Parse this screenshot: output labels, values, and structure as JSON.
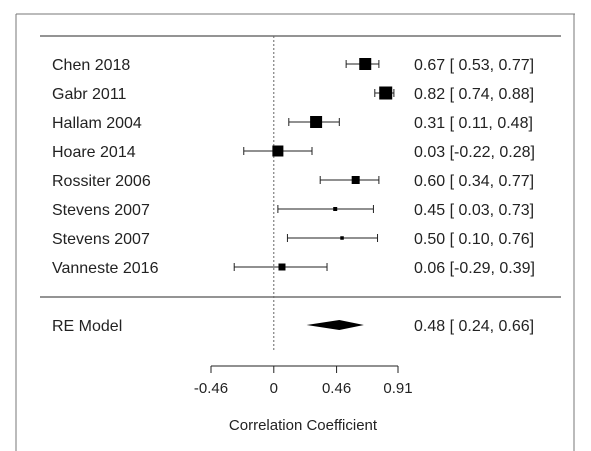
{
  "chart_data": {
    "type": "forest",
    "xlabel": "Correlation Coefficient",
    "xlim": [
      -0.46,
      0.91
    ],
    "xticks": [
      -0.46,
      0,
      0.46,
      0.91
    ],
    "xtick_labels": [
      "-0.46",
      "0",
      "0.46",
      "0.91"
    ],
    "reference_line": 0,
    "studies": [
      {
        "label": "Chen 2018",
        "estimate": 0.67,
        "ci": [
          0.53,
          0.77
        ],
        "ci_text": "0.67 [ 0.53, 0.77]",
        "weight": 12
      },
      {
        "label": "Gabr 2011",
        "estimate": 0.82,
        "ci": [
          0.74,
          0.88
        ],
        "ci_text": "0.82 [ 0.74, 0.88]",
        "weight": 13
      },
      {
        "label": "Hallam 2004",
        "estimate": 0.31,
        "ci": [
          0.11,
          0.48
        ],
        "ci_text": "0.31 [ 0.11, 0.48]",
        "weight": 12
      },
      {
        "label": "Hoare 2014",
        "estimate": 0.03,
        "ci": [
          -0.22,
          0.28
        ],
        "ci_text": "0.03 [-0.22, 0.28]",
        "weight": 11
      },
      {
        "label": "Rossiter 2006",
        "estimate": 0.6,
        "ci": [
          0.34,
          0.77
        ],
        "ci_text": "0.60 [ 0.34, 0.77]",
        "weight": 8
      },
      {
        "label": "Stevens 2007",
        "estimate": 0.45,
        "ci": [
          0.03,
          0.73
        ],
        "ci_text": "0.45 [ 0.03, 0.73]",
        "weight": 4
      },
      {
        "label": "Stevens 2007",
        "estimate": 0.5,
        "ci": [
          0.1,
          0.76
        ],
        "ci_text": "0.50 [ 0.10, 0.76]",
        "weight": 3.5
      },
      {
        "label": "Vanneste 2016",
        "estimate": 0.06,
        "ci": [
          -0.29,
          0.39
        ],
        "ci_text": "0.06 [-0.29, 0.39]",
        "weight": 7
      }
    ],
    "summary": {
      "label": "RE Model",
      "estimate": 0.48,
      "ci": [
        0.24,
        0.66
      ],
      "ci_text": "0.48 [ 0.24, 0.66]"
    },
    "colors": {
      "marker": "#000000",
      "line": "#222222",
      "frame": "#555555"
    }
  }
}
